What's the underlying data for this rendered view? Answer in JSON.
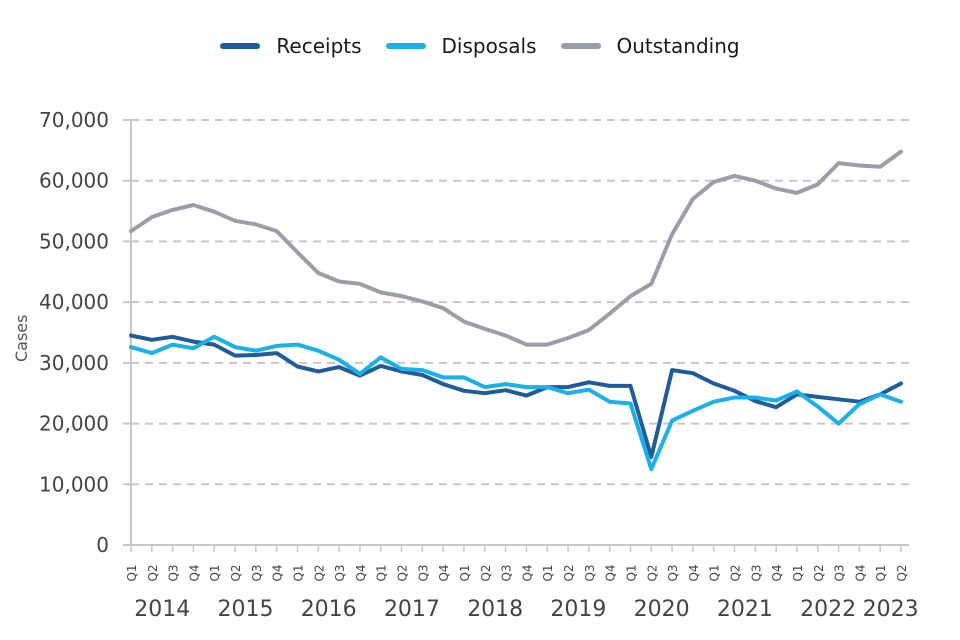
{
  "chart_data": {
    "type": "line",
    "title": "",
    "xlabel": "",
    "ylabel": "Cases",
    "ylim": [
      0,
      70000
    ],
    "yticks": [
      0,
      10000,
      20000,
      30000,
      40000,
      50000,
      60000,
      70000
    ],
    "ytick_labels": [
      "0",
      "10,000",
      "20,000",
      "30,000",
      "40,000",
      "50,000",
      "60,000",
      "70,000"
    ],
    "grid": true,
    "legend_position": "top-center",
    "categories": [
      "Q1",
      "Q2",
      "Q3",
      "Q4",
      "Q1",
      "Q2",
      "Q3",
      "Q4",
      "Q1",
      "Q2",
      "Q3",
      "Q4",
      "Q1",
      "Q2",
      "Q3",
      "Q4",
      "Q1",
      "Q2",
      "Q3",
      "Q4",
      "Q1",
      "Q2",
      "Q3",
      "Q4",
      "Q1",
      "Q2",
      "Q3",
      "Q4",
      "Q1",
      "Q2",
      "Q3",
      "Q4",
      "Q1",
      "Q2",
      "Q3",
      "Q4",
      "Q1",
      "Q2"
    ],
    "years": [
      {
        "label": "2014",
        "start": 0,
        "count": 4
      },
      {
        "label": "2015",
        "start": 4,
        "count": 4
      },
      {
        "label": "2016",
        "start": 8,
        "count": 4
      },
      {
        "label": "2017",
        "start": 12,
        "count": 4
      },
      {
        "label": "2018",
        "start": 16,
        "count": 4
      },
      {
        "label": "2019",
        "start": 20,
        "count": 4
      },
      {
        "label": "2020",
        "start": 24,
        "count": 4
      },
      {
        "label": "2021",
        "start": 28,
        "count": 4
      },
      {
        "label": "2022",
        "start": 32,
        "count": 4
      },
      {
        "label": "2023",
        "start": 36,
        "count": 2
      }
    ],
    "series": [
      {
        "name": "Receipts",
        "color": "#1f5c99",
        "values": [
          34500,
          33800,
          34300,
          33500,
          33000,
          31200,
          31300,
          31600,
          29400,
          28600,
          29300,
          27900,
          29500,
          28600,
          28000,
          26500,
          25400,
          25000,
          25500,
          24600,
          26000,
          26000,
          26800,
          26200,
          26200,
          14500,
          28800,
          28300,
          26600,
          25400,
          23700,
          22700,
          24800,
          24400,
          24000,
          23600,
          24800,
          26600
        ]
      },
      {
        "name": "Disposals",
        "color": "#1ab0e8",
        "values": [
          32600,
          31600,
          33000,
          32400,
          34300,
          32600,
          32000,
          32800,
          33000,
          32000,
          30500,
          28200,
          30900,
          29000,
          28800,
          27600,
          27600,
          26000,
          26500,
          26000,
          26000,
          25000,
          25600,
          23600,
          23300,
          12500,
          20500,
          22100,
          23600,
          24300,
          24300,
          23800,
          25300,
          22800,
          20000,
          23200,
          24800,
          23600
        ]
      },
      {
        "name": "Outstanding",
        "color": "#9a9daa",
        "values": [
          51700,
          54000,
          55200,
          56000,
          54900,
          53400,
          52800,
          51700,
          48200,
          44800,
          43400,
          43000,
          41600,
          41000,
          40100,
          39000,
          36800,
          35600,
          34500,
          33000,
          33000,
          34100,
          35400,
          38100,
          41000,
          43000,
          51200,
          57000,
          59800,
          60800,
          60000,
          58700,
          58000,
          59400,
          62900,
          62500,
          62300,
          64800
        ]
      }
    ]
  }
}
